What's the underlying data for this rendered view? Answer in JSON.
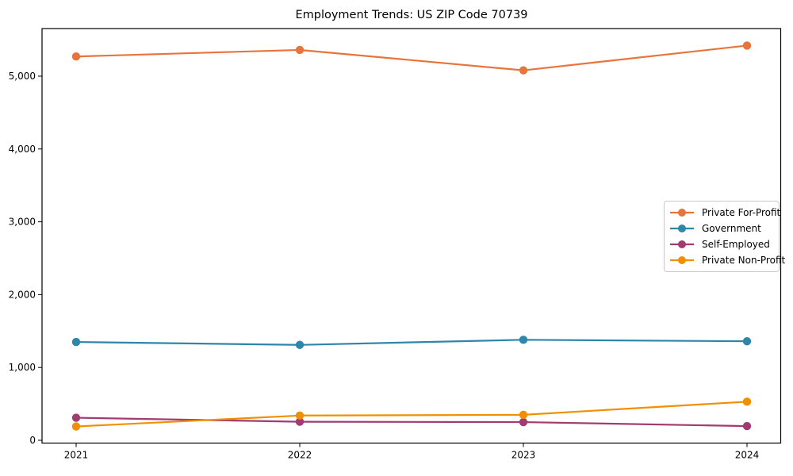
{
  "chart_data": {
    "type": "line",
    "title": "Employment Trends: US ZIP Code 70739",
    "xlabel": "",
    "ylabel": "",
    "categories": [
      "2021",
      "2022",
      "2023",
      "2024"
    ],
    "series": [
      {
        "name": "Private For-Profit",
        "color": "#E8743B",
        "values": [
          5270,
          5360,
          5080,
          5420
        ]
      },
      {
        "name": "Government",
        "color": "#2E86AB",
        "values": [
          1350,
          1310,
          1380,
          1360
        ]
      },
      {
        "name": "Self-Employed",
        "color": "#A23B72",
        "values": [
          310,
          255,
          250,
          195
        ]
      },
      {
        "name": "Private Non-Profit",
        "color": "#F18F01",
        "values": [
          190,
          340,
          350,
          530
        ]
      }
    ],
    "yticks": [
      {
        "value": 0,
        "label": "0"
      },
      {
        "value": 1000,
        "label": "1,000"
      },
      {
        "value": 2000,
        "label": "2,000"
      },
      {
        "value": 3000,
        "label": "3,000"
      },
      {
        "value": 4000,
        "label": "4,000"
      },
      {
        "value": 5000,
        "label": "5,000"
      }
    ],
    "ylim": [
      -50,
      5650
    ],
    "grid": false,
    "legend_position": "center-right",
    "marker": "circle",
    "axis_color": "#000000"
  }
}
